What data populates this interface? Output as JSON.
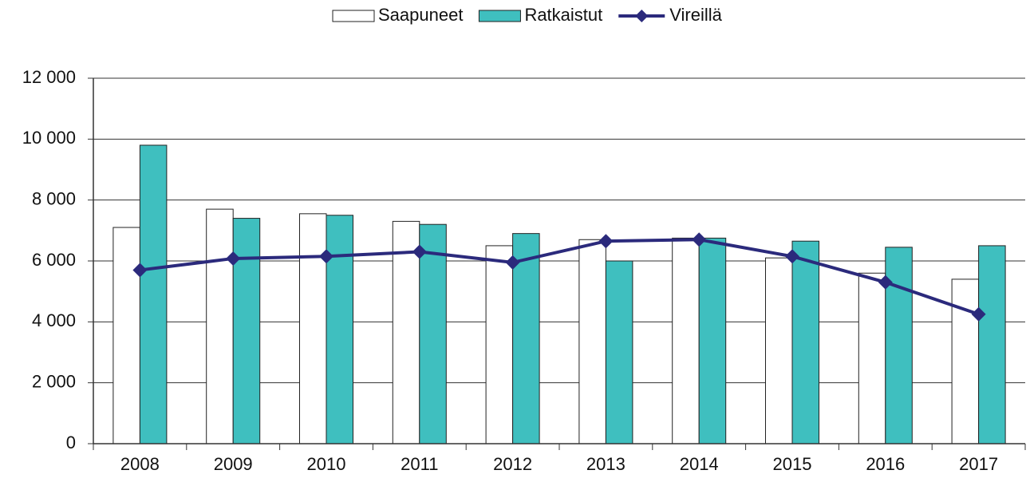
{
  "chart_data": {
    "type": "bar",
    "categories": [
      "2008",
      "2009",
      "2010",
      "2011",
      "2012",
      "2013",
      "2014",
      "2015",
      "2016",
      "2017"
    ],
    "series": [
      {
        "name": "Saapuneet",
        "color": "#ffffff",
        "values": [
          7100,
          7700,
          7550,
          7300,
          6500,
          6700,
          6750,
          6100,
          5600,
          5400
        ]
      },
      {
        "name": "Ratkaistut",
        "color": "#3fbfbf",
        "values": [
          9800,
          7400,
          7500,
          7200,
          6900,
          6000,
          6750,
          6650,
          6450,
          6500
        ]
      },
      {
        "name": "Vireillä",
        "type": "line",
        "color": "#2b2a7c",
        "values": [
          5700,
          6080,
          6150,
          6300,
          5950,
          6650,
          6700,
          6150,
          5300,
          4250
        ]
      }
    ],
    "ylim": [
      0,
      12000
    ],
    "yticks": [
      0,
      {
        "value": 2000,
        "label": "2 000"
      },
      {
        "value": 4000,
        "label": "4 000"
      },
      {
        "value": 6000,
        "label": "6 000"
      },
      {
        "value": 8000,
        "label": "8 000"
      },
      {
        "value": 10000,
        "label": "10 000"
      },
      {
        "value": 12000,
        "label": "12 000"
      }
    ],
    "grid": true,
    "legend": "top"
  }
}
